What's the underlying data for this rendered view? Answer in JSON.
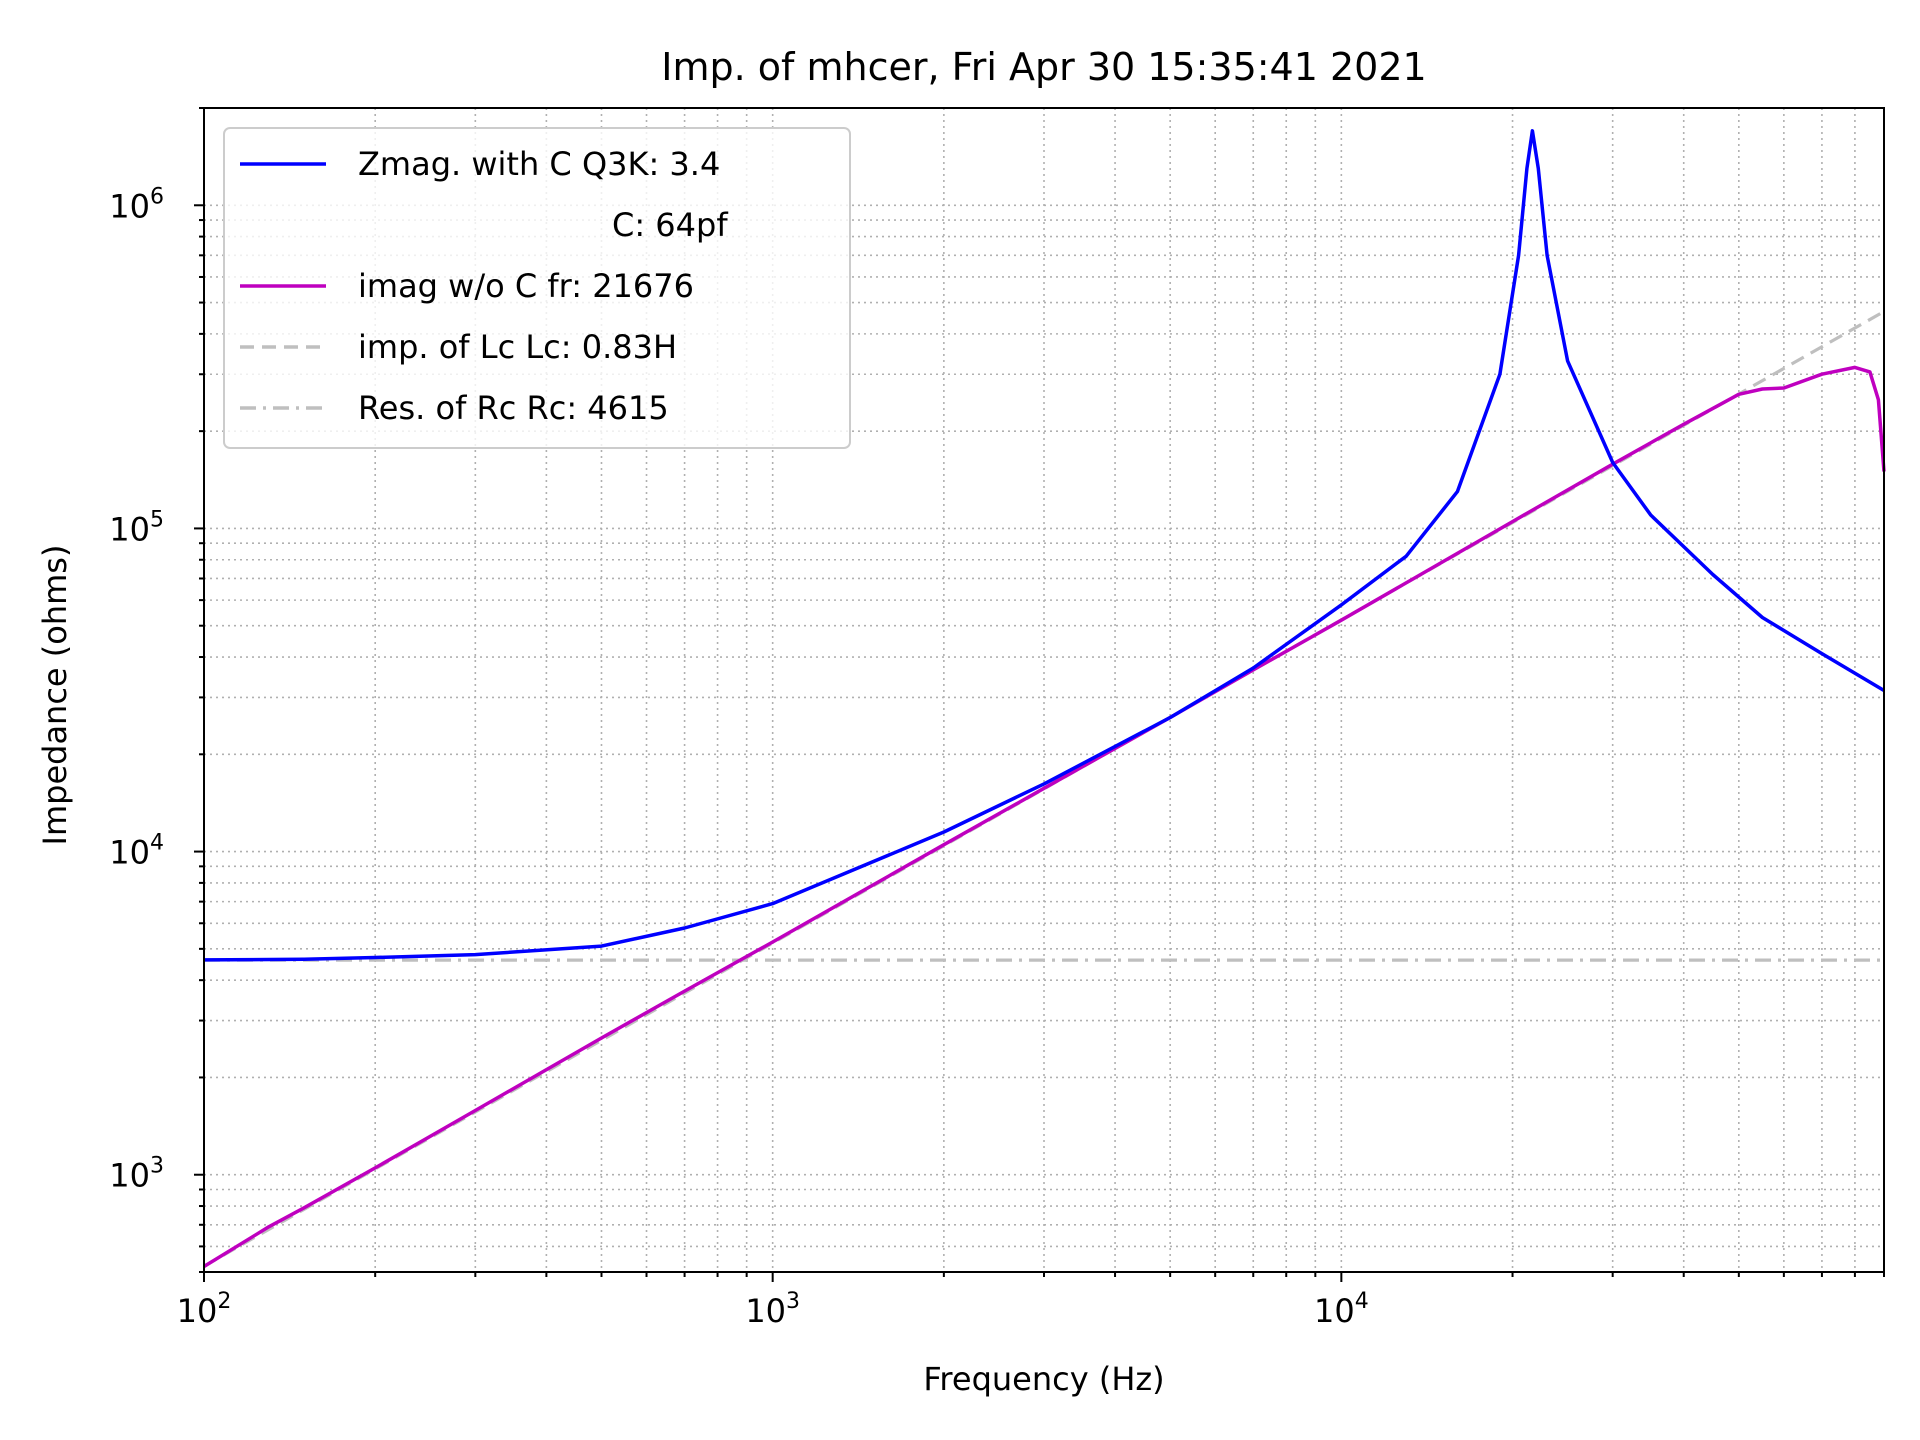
{
  "chart_data": {
    "type": "line",
    "title": "Imp. of mhcer, Fri Apr 30 15:35:41 2021",
    "xlabel": "Frequency (Hz)",
    "ylabel": "Impedance (ohms)",
    "xscale": "log",
    "yscale": "log",
    "xlim": [
      100,
      90000
    ],
    "ylim": [
      500,
      2000000
    ],
    "grid": "major and minor, dotted",
    "legend_position": "top-left",
    "x_tick_labels": [
      {
        "value": 100,
        "base": "10",
        "exp": "2"
      },
      {
        "value": 1000,
        "base": "10",
        "exp": "3"
      },
      {
        "value": 10000,
        "base": "10",
        "exp": "4"
      }
    ],
    "y_tick_labels": [
      {
        "value": 1000,
        "base": "10",
        "exp": "3"
      },
      {
        "value": 10000,
        "base": "10",
        "exp": "4"
      },
      {
        "value": 100000,
        "base": "10",
        "exp": "5"
      },
      {
        "value": 1000000,
        "base": "10",
        "exp": "6"
      }
    ],
    "legend": [
      {
        "label": "Zmag. with C Q3K: 3.4",
        "color": "#0000ff",
        "style": "solid"
      },
      {
        "label": "C: 64pf",
        "color": null,
        "style": "none"
      },
      {
        "label": "imag w/o C fr: 21676",
        "color": "#bf00bf",
        "style": "solid"
      },
      {
        "label": "imp. of Lc  Lc: 0.83H",
        "color": "#bfbfbf",
        "style": "dashed"
      },
      {
        "label": "Res. of Rc Rc: 4615",
        "color": "#bfbfbf",
        "style": "dashdot"
      }
    ],
    "series": [
      {
        "name": "Zmag. with C Q3K: 3.4",
        "color": "#0000ff",
        "style": "solid",
        "points": [
          [
            100,
            4620
          ],
          [
            150,
            4640
          ],
          [
            200,
            4700
          ],
          [
            300,
            4800
          ],
          [
            500,
            5100
          ],
          [
            700,
            5800
          ],
          [
            1000,
            6900
          ],
          [
            2000,
            11500
          ],
          [
            3000,
            16200
          ],
          [
            5000,
            26000
          ],
          [
            7000,
            37000
          ],
          [
            10000,
            58000
          ],
          [
            13000,
            82000
          ],
          [
            16000,
            130000
          ],
          [
            19000,
            300000
          ],
          [
            20500,
            700000
          ],
          [
            21200,
            1300000
          ],
          [
            21676,
            1700000
          ],
          [
            22200,
            1300000
          ],
          [
            23000,
            700000
          ],
          [
            25000,
            330000
          ],
          [
            30000,
            160000
          ],
          [
            35000,
            110000
          ],
          [
            45000,
            72000
          ],
          [
            55000,
            53000
          ],
          [
            70000,
            41000
          ],
          [
            90000,
            31500
          ]
        ]
      },
      {
        "name": "imag w/o C fr: 21676",
        "color": "#bf00bf",
        "style": "solid",
        "points": [
          [
            100,
            520
          ],
          [
            130,
            690
          ],
          [
            150,
            790
          ],
          [
            200,
            1050
          ],
          [
            300,
            1580
          ],
          [
            500,
            2650
          ],
          [
            700,
            3700
          ],
          [
            1000,
            5250
          ],
          [
            2000,
            10500
          ],
          [
            3000,
            15700
          ],
          [
            5000,
            26000
          ],
          [
            7000,
            36500
          ],
          [
            10000,
            52000
          ],
          [
            20000,
            105000
          ],
          [
            30000,
            158000
          ],
          [
            40000,
            210000
          ],
          [
            50000,
            260000
          ],
          [
            55000,
            270000
          ],
          [
            60000,
            272000
          ],
          [
            70000,
            300000
          ],
          [
            80000,
            315000
          ],
          [
            85000,
            305000
          ],
          [
            88000,
            250000
          ],
          [
            90000,
            150000
          ]
        ]
      },
      {
        "name": "imp. of Lc  Lc: 0.83H",
        "color": "#bfbfbf",
        "style": "dashed",
        "points": [
          [
            100,
            521
          ],
          [
            90000,
            469000
          ]
        ]
      },
      {
        "name": "Res. of Rc Rc: 4615",
        "color": "#bfbfbf",
        "style": "dashdot",
        "points": [
          [
            100,
            4615
          ],
          [
            90000,
            4615
          ]
        ]
      }
    ]
  }
}
